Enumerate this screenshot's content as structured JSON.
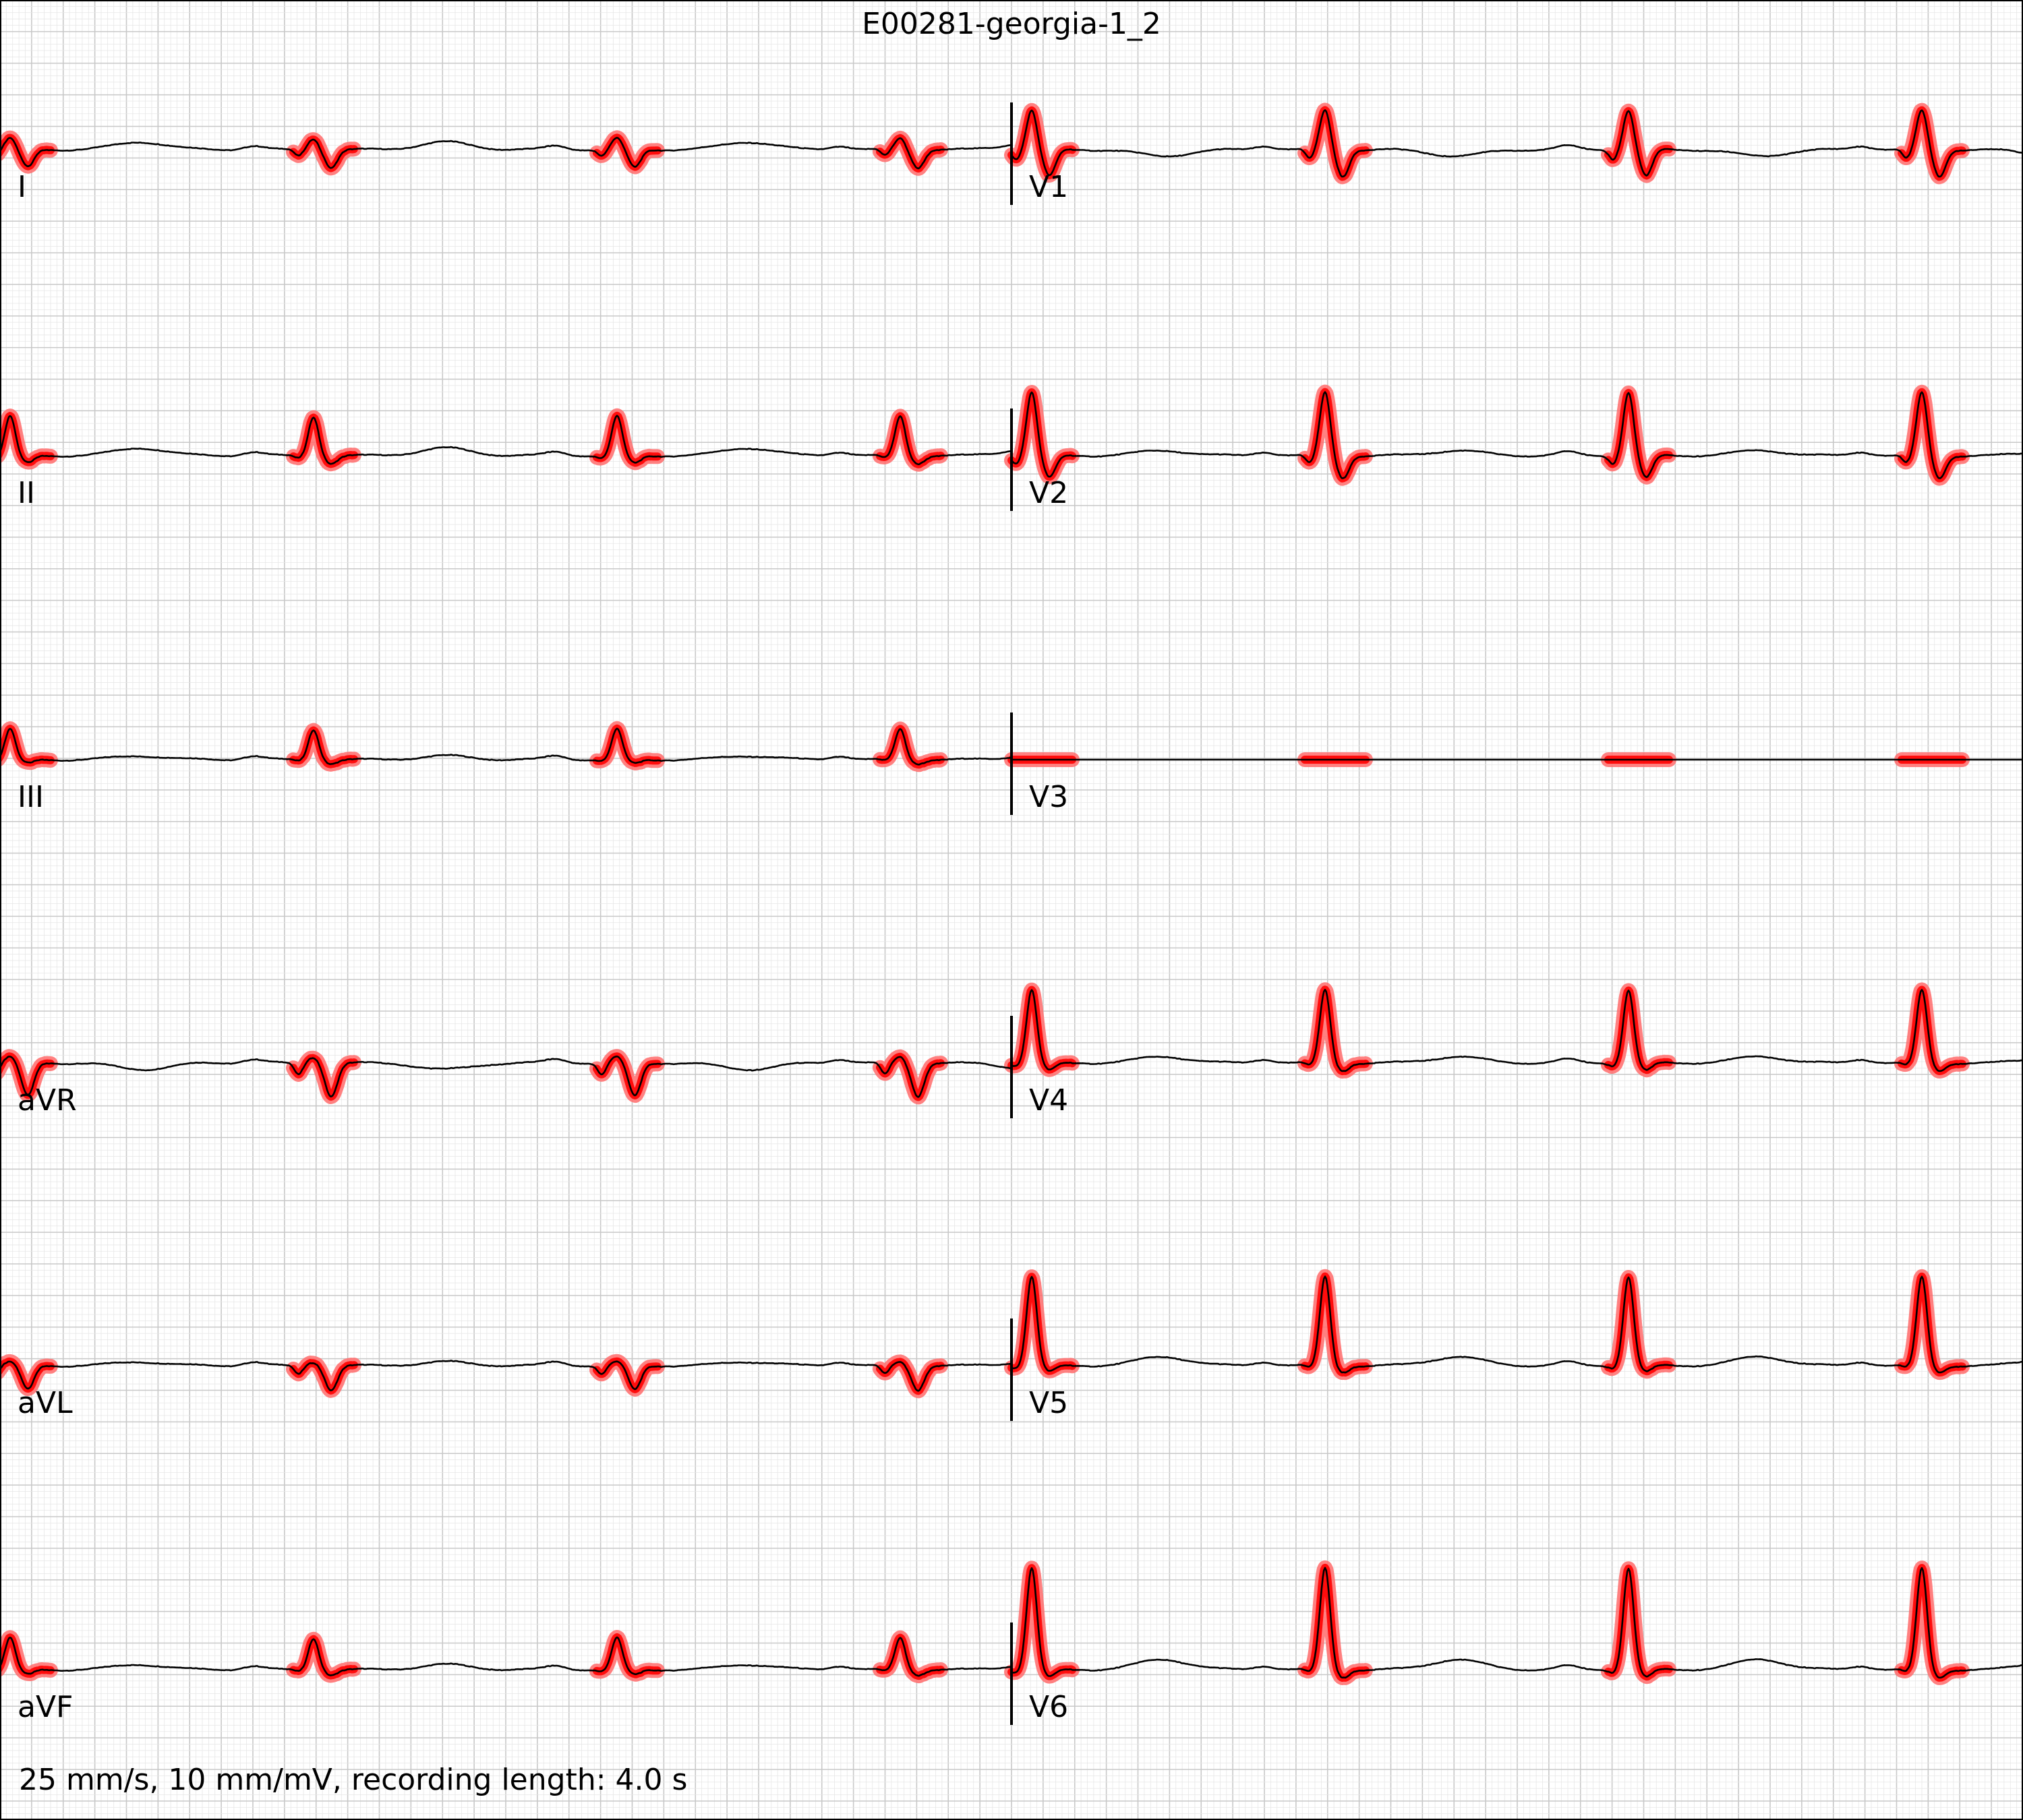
{
  "chart_data": {
    "type": "line",
    "title": "E00281-georgia-1_2",
    "footer": "25 mm/s, 10 mm/mV, recording length: 4.0 s",
    "paper_speed": "25 mm/s",
    "gain": "10 mm/mV",
    "recording_length_s": 4.0,
    "layout": "6 rows x 2 columns",
    "grid": true,
    "colors": {
      "background": "#ffffff",
      "grid_minor": "#e6e6e6",
      "grid_major": "#c8c8c8",
      "trace": "#000000",
      "highlight_light": "#ff6b6b",
      "highlight_strong": "#ff0000",
      "frame": "#000000"
    },
    "leads": [
      {
        "name": "I",
        "column": 0,
        "row": 0,
        "t_start": 0.0,
        "t_end": 2.0,
        "beats_s": [
          0.02,
          0.62,
          1.22,
          1.78
        ],
        "r_mv": 0.18,
        "s_mv": -0.28,
        "t_mv": 0.12,
        "highlight": true
      },
      {
        "name": "II",
        "column": 0,
        "row": 1,
        "t_start": 0.0,
        "t_end": 2.0,
        "beats_s": [
          0.02,
          0.62,
          1.22,
          1.78
        ],
        "r_mv": 0.62,
        "s_mv": -0.12,
        "t_mv": 0.12,
        "highlight": true
      },
      {
        "name": "III",
        "column": 0,
        "row": 2,
        "t_start": 0.0,
        "t_end": 2.0,
        "beats_s": [
          0.02,
          0.62,
          1.22,
          1.78
        ],
        "r_mv": 0.48,
        "s_mv": -0.06,
        "t_mv": 0.06,
        "highlight": true
      },
      {
        "name": "aVR",
        "column": 0,
        "row": 3,
        "t_start": 0.0,
        "t_end": 2.0,
        "beats_s": [
          0.02,
          0.62,
          1.22,
          1.78
        ],
        "r_mv": 0.1,
        "s_mv": -0.52,
        "t_mv": -0.1,
        "highlight": true
      },
      {
        "name": "aVL",
        "column": 0,
        "row": 4,
        "t_start": 0.0,
        "t_end": 2.0,
        "beats_s": [
          0.02,
          0.62,
          1.22,
          1.78
        ],
        "r_mv": 0.06,
        "s_mv": -0.38,
        "t_mv": 0.06,
        "highlight": true
      },
      {
        "name": "aVF",
        "column": 0,
        "row": 5,
        "t_start": 0.0,
        "t_end": 2.0,
        "beats_s": [
          0.02,
          0.62,
          1.22,
          1.78
        ],
        "r_mv": 0.5,
        "s_mv": -0.08,
        "t_mv": 0.08,
        "highlight": true
      },
      {
        "name": "V1",
        "column": 1,
        "row": 0,
        "t_start": 2.0,
        "t_end": 4.0,
        "beats_s": [
          2.04,
          2.62,
          3.22,
          3.8
        ],
        "r_mv": 0.62,
        "s_mv": -0.42,
        "t_mv": -0.1,
        "highlight": true
      },
      {
        "name": "V2",
        "column": 1,
        "row": 1,
        "t_start": 2.0,
        "t_end": 4.0,
        "beats_s": [
          2.04,
          2.62,
          3.22,
          3.8
        ],
        "r_mv": 1.0,
        "s_mv": -0.35,
        "t_mv": 0.08,
        "highlight": true
      },
      {
        "name": "V3",
        "column": 1,
        "row": 2,
        "t_start": 2.0,
        "t_end": 4.0,
        "beats_s": [
          2.04,
          2.62,
          3.22,
          3.8
        ],
        "r_mv": 0.0,
        "s_mv": 0.0,
        "t_mv": 0.0,
        "highlight": true
      },
      {
        "name": "V4",
        "column": 1,
        "row": 3,
        "t_start": 2.0,
        "t_end": 4.0,
        "beats_s": [
          2.04,
          2.62,
          3.22,
          3.8
        ],
        "r_mv": 1.15,
        "s_mv": -0.12,
        "t_mv": 0.1,
        "highlight": true
      },
      {
        "name": "V5",
        "column": 1,
        "row": 4,
        "t_start": 2.0,
        "t_end": 4.0,
        "beats_s": [
          2.04,
          2.62,
          3.22,
          3.8
        ],
        "r_mv": 1.4,
        "s_mv": -0.1,
        "t_mv": 0.14,
        "highlight": true
      },
      {
        "name": "V6",
        "column": 1,
        "row": 5,
        "t_start": 2.0,
        "t_end": 4.0,
        "beats_s": [
          2.04,
          2.62,
          3.22,
          3.8
        ],
        "r_mv": 1.6,
        "s_mv": -0.12,
        "t_mv": 0.16,
        "highlight": true
      }
    ]
  }
}
